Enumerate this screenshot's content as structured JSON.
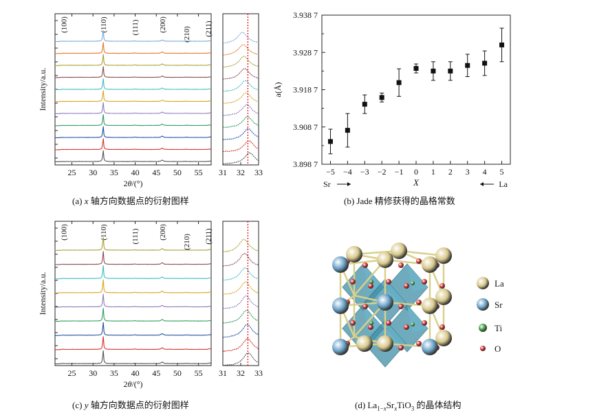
{
  "panels": {
    "a": {
      "caption_prefix": "(a) ",
      "caption_var": "x",
      "caption_rest": " 轴方向数据点的衍射图样"
    },
    "b": {
      "caption": "(b) Jade 精修获得的晶格常数"
    },
    "c": {
      "caption_prefix": "(c) ",
      "caption_var": "y",
      "caption_rest": " 轴方向数据点的衍射图样"
    },
    "d": {
      "caption_prefix": "(d) La",
      "caption_sub1": "1−",
      "caption_sub1_var": "x",
      "caption_mid": "Sr",
      "caption_sub2": "x",
      "caption_rest": "TiO",
      "caption_sub3": "3",
      "caption_end": " 的晶体结构"
    }
  },
  "xrd": {
    "ylabel": "Intensity/a.u.",
    "xlabel_prefix": "2",
    "xlabel_theta": "θ",
    "xlabel_unit": "/(°)",
    "main_xticks": [
      "25",
      "30",
      "35",
      "40",
      "45",
      "50",
      "55"
    ],
    "zoom_xticks": [
      "31",
      "32",
      "33"
    ],
    "peaks": [
      "(100)",
      "(110)",
      "(111)",
      "(200)",
      "(210)",
      "(211)"
    ],
    "colors_a": [
      "#7da7d9",
      "#e8762b",
      "#a6a031",
      "#8b4c54",
      "#3fbcc0",
      "#d9a320",
      "#8c7bbf",
      "#2e9c5f",
      "#2451a3",
      "#d6332c",
      "#555555"
    ],
    "colors_c": [
      "#a6a031",
      "#8b4c54",
      "#3fbcc0",
      "#d9a320",
      "#8c7bbf",
      "#2e9c5f",
      "#2451a3",
      "#d6332c",
      "#555555"
    ]
  },
  "chart_data": [
    {
      "type": "line",
      "panel": "a",
      "description_of_series": "11 XRD patterns offset vertically",
      "x_range": [
        21,
        58
      ],
      "zoom_x_range": [
        31,
        33
      ],
      "reference_line_x": 32.4,
      "peak_positions": [
        22.8,
        32.4,
        39.9,
        46.4,
        52.1,
        57.7
      ],
      "peak_labels": [
        "(100)",
        "(110)",
        "(111)",
        "(200)",
        "(210)",
        "(211)"
      ],
      "series_count": 11
    },
    {
      "type": "scatter",
      "panel": "b",
      "xlabel": "X",
      "ylabel": "a(Å)",
      "x_ticks": [
        "−5",
        "−4",
        "−3",
        "−2",
        "−1",
        "0",
        "1",
        "2",
        "3",
        "4",
        "5"
      ],
      "y_ticks": [
        "3.898 7",
        "3.908 7",
        "3.918 7",
        "3.928 7",
        "3.938 7"
      ],
      "ylim": [
        3.8987,
        3.9387
      ],
      "xlim": [
        -5.5,
        5.5
      ],
      "left_note": "Sr",
      "right_note": "La",
      "x": [
        -5,
        -4,
        -3,
        -2,
        -1,
        0,
        1,
        2,
        3,
        4,
        5
      ],
      "y": [
        3.9048,
        3.9078,
        3.9148,
        3.9166,
        3.9206,
        3.9244,
        3.9237,
        3.9237,
        3.9252,
        3.9258,
        3.9307
      ],
      "err": [
        0.0033,
        0.0045,
        0.0025,
        0.0012,
        0.0037,
        0.0012,
        0.0025,
        0.0025,
        0.003,
        0.0033,
        0.0045
      ]
    },
    {
      "type": "line",
      "panel": "c",
      "description_of_series": "9 XRD patterns offset vertically",
      "x_range": [
        21,
        58
      ],
      "zoom_x_range": [
        31,
        33
      ],
      "reference_line_x": 32.4,
      "peak_positions": [
        22.8,
        32.4,
        39.9,
        46.4,
        52.1,
        57.7
      ],
      "peak_labels": [
        "(100)",
        "(110)",
        "(111)",
        "(200)",
        "(210)",
        "(211)"
      ],
      "series_count": 9
    }
  ],
  "structure": {
    "legend": [
      {
        "label": "La",
        "color": "#d8c98a"
      },
      {
        "label": "Sr",
        "color": "#6aa3c8"
      },
      {
        "label": "Ti",
        "color": "#3a9a3a"
      },
      {
        "label": "O",
        "color": "#cc2222"
      }
    ]
  }
}
